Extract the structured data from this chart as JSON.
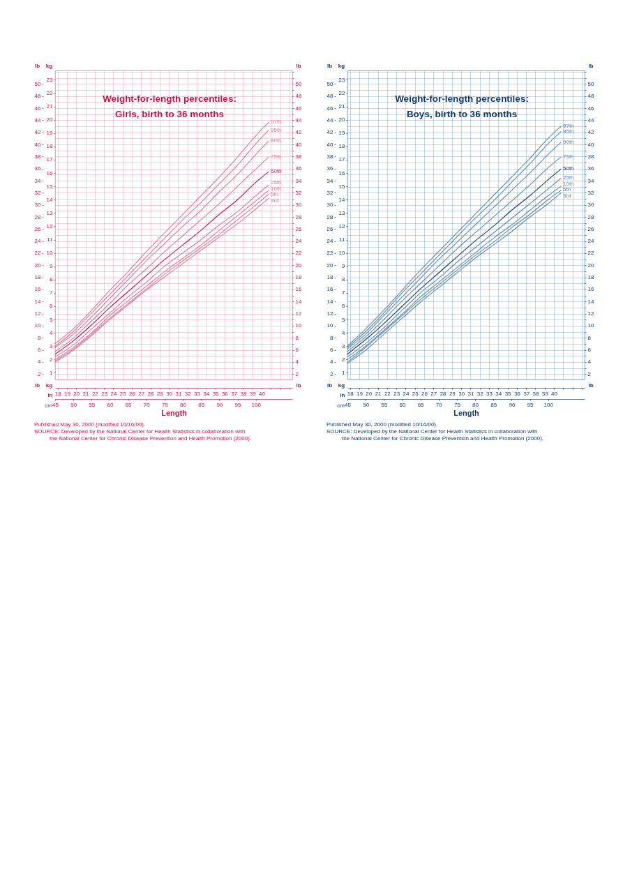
{
  "chart_data": [
    {
      "type": "line",
      "title": "Weight-for-length percentiles:",
      "subtitle": "Girls, birth to 36 months",
      "xlabel": "Length",
      "x2label": "in",
      "ylabel": "kg",
      "y2label": "lb",
      "y3label": "lb",
      "x": [
        45,
        50,
        55,
        60,
        65,
        70,
        75,
        80,
        85,
        90,
        95,
        100,
        103.5
      ],
      "xlim": [
        45,
        110
      ],
      "xticks": [
        45,
        50,
        55,
        60,
        65,
        70,
        75,
        80,
        85,
        90,
        95,
        100
      ],
      "x2lim": [
        17.72,
        43.31
      ],
      "x2ticks": [
        18,
        19,
        20,
        21,
        22,
        23,
        24,
        25,
        26,
        27,
        28,
        29,
        30,
        31,
        32,
        33,
        34,
        35,
        36,
        37,
        38,
        39,
        40,
        {
          "value": 41,
          "label": null
        },
        {
          "value": 42,
          "label": null
        },
        {
          "value": 43,
          "label": null
        }
      ],
      "ylim": [
        0.5,
        23.7
      ],
      "yticks": [
        1,
        2,
        3,
        4,
        5,
        6,
        7,
        8,
        9,
        10,
        11,
        12,
        13,
        14,
        15,
        16,
        17,
        18,
        19,
        20,
        21,
        22,
        23
      ],
      "y2lim": [
        1.1,
        52.25
      ],
      "y2ticks": [
        2,
        {
          "value": 3,
          "label": null
        },
        4,
        {
          "value": 5,
          "label": null
        },
        6,
        {
          "value": 7,
          "label": null
        },
        8,
        {
          "value": 9,
          "label": null
        },
        10,
        {
          "value": 11,
          "label": null
        },
        12,
        {
          "value": 13,
          "label": null
        },
        14,
        {
          "value": 15,
          "label": null
        },
        16,
        {
          "value": 17,
          "label": null
        },
        18,
        {
          "value": 19,
          "label": null
        },
        20,
        {
          "value": 21,
          "label": null
        },
        22,
        {
          "value": 23,
          "label": null
        },
        24,
        {
          "value": 25,
          "label": null
        },
        26,
        {
          "value": 27,
          "label": null
        },
        28,
        {
          "value": 29,
          "label": null
        },
        30,
        {
          "value": 31,
          "label": null
        },
        32,
        {
          "value": 33,
          "label": null
        },
        34,
        {
          "value": 35,
          "label": null
        },
        36,
        {
          "value": 37,
          "label": null
        },
        38,
        {
          "value": 39,
          "label": null
        },
        40,
        {
          "value": 41,
          "label": null
        },
        42,
        {
          "value": 43,
          "label": null
        },
        44,
        {
          "value": 45,
          "label": null
        },
        46,
        {
          "value": 47,
          "label": null
        },
        48,
        {
          "value": 49,
          "label": null
        },
        50,
        {
          "value": 51,
          "label": null
        },
        {
          "value": 52,
          "label": null
        }
      ],
      "y3lim": [
        1.1,
        52.25
      ],
      "y3ticks": [
        2,
        4,
        6,
        8,
        10,
        12,
        14,
        16,
        18,
        20,
        22,
        24,
        26,
        28,
        30,
        32,
        34,
        36,
        38,
        40,
        42,
        44,
        46,
        48,
        50
      ],
      "grid": true,
      "series": [
        {
          "name": "97th",
          "color": "#d77a9c",
          "values": [
            3.2,
            4.3,
            5.7,
            7.2,
            8.6,
            10.1,
            11.5,
            12.9,
            14.3,
            15.7,
            17.2,
            18.8,
            19.8
          ]
        },
        {
          "name": "95th",
          "color": "#d77a9c",
          "values": [
            3.0,
            4.1,
            5.5,
            6.9,
            8.3,
            9.7,
            11.1,
            12.5,
            13.8,
            15.2,
            16.6,
            18.2,
            19.2
          ]
        },
        {
          "name": "90th",
          "color": "#d77a9c",
          "values": [
            2.9,
            3.9,
            5.2,
            6.6,
            8.0,
            9.4,
            10.7,
            12.0,
            13.2,
            14.6,
            15.9,
            17.4,
            18.4
          ]
        },
        {
          "name": "75th",
          "color": "#d77a9c",
          "values": [
            2.6,
            3.6,
            4.9,
            6.2,
            7.6,
            8.8,
            10.1,
            11.3,
            12.5,
            13.7,
            15.0,
            16.3,
            17.2
          ]
        },
        {
          "name": "50th",
          "color": "#b8194f",
          "values": [
            2.4,
            3.4,
            4.6,
            5.9,
            7.1,
            8.3,
            9.5,
            10.6,
            11.7,
            12.9,
            14.0,
            15.3,
            16.1
          ]
        },
        {
          "name": "25th",
          "color": "#d77a9c",
          "values": [
            2.2,
            3.1,
            4.3,
            5.5,
            6.7,
            7.8,
            9.0,
            10.0,
            11.0,
            12.1,
            13.1,
            14.3,
            15.1
          ]
        },
        {
          "name": "10th",
          "color": "#d77a9c",
          "values": [
            2.0,
            2.9,
            4.0,
            5.3,
            6.4,
            7.5,
            8.6,
            9.6,
            10.6,
            11.7,
            12.8,
            13.9,
            14.7
          ]
        },
        {
          "name": "5th",
          "color": "#d77a9c",
          "values": [
            1.9,
            2.8,
            3.9,
            5.1,
            6.2,
            7.3,
            8.4,
            9.4,
            10.4,
            11.4,
            12.5,
            13.6,
            14.4
          ]
        },
        {
          "name": "3rd",
          "color": "#d77a9c",
          "values": [
            1.8,
            2.7,
            3.8,
            5.0,
            6.1,
            7.2,
            8.2,
            9.2,
            10.2,
            11.2,
            12.2,
            13.3,
            14.1
          ]
        }
      ],
      "annotations": [
        "cm",
        "Published May 30, 2000 (modified 10/16/00).",
        "SOURCE: Developed by the National Center for Health Statistics in collaboration with",
        "the National Center for Chronic Disease Prevention and Health Promotion (2000)."
      ]
    },
    {
      "type": "line",
      "title": "Weight-for-length percentiles:",
      "subtitle": "Boys, birth to 36 months",
      "xlabel": "Length",
      "x2label": "in",
      "ylabel": "kg",
      "y2label": "lb",
      "y3label": "lb",
      "x": [
        45,
        50,
        55,
        60,
        65,
        70,
        75,
        80,
        85,
        90,
        95,
        100,
        103.5
      ],
      "xlim": [
        45,
        110
      ],
      "xticks": [
        45,
        50,
        55,
        60,
        65,
        70,
        75,
        80,
        85,
        90,
        95,
        100
      ],
      "x2lim": [
        17.72,
        43.31
      ],
      "x2ticks": [
        18,
        19,
        20,
        21,
        22,
        23,
        24,
        25,
        26,
        27,
        28,
        29,
        30,
        31,
        32,
        33,
        34,
        35,
        36,
        37,
        38,
        39,
        40,
        {
          "value": 41,
          "label": null
        },
        {
          "value": 42,
          "label": null
        },
        {
          "value": 43,
          "label": null
        }
      ],
      "ylim": [
        0.5,
        23.7
      ],
      "yticks": [
        1,
        2,
        3,
        4,
        5,
        6,
        7,
        8,
        9,
        10,
        11,
        12,
        13,
        14,
        15,
        16,
        17,
        18,
        19,
        20,
        21,
        22,
        23
      ],
      "y2lim": [
        1.1,
        52.25
      ],
      "y2ticks": [
        2,
        {
          "value": 3,
          "label": null
        },
        4,
        {
          "value": 5,
          "label": null
        },
        6,
        {
          "value": 7,
          "label": null
        },
        8,
        {
          "value": 9,
          "label": null
        },
        10,
        {
          "value": 11,
          "label": null
        },
        12,
        {
          "value": 13,
          "label": null
        },
        14,
        {
          "value": 15,
          "label": null
        },
        16,
        {
          "value": 17,
          "label": null
        },
        18,
        {
          "value": 19,
          "label": null
        },
        20,
        {
          "value": 21,
          "label": null
        },
        22,
        {
          "value": 23,
          "label": null
        },
        24,
        {
          "value": 25,
          "label": null
        },
        26,
        {
          "value": 27,
          "label": null
        },
        28,
        {
          "value": 29,
          "label": null
        },
        30,
        {
          "value": 31,
          "label": null
        },
        32,
        {
          "value": 33,
          "label": null
        },
        34,
        {
          "value": 35,
          "label": null
        },
        36,
        {
          "value": 37,
          "label": null
        },
        38,
        {
          "value": 39,
          "label": null
        },
        40,
        {
          "value": 41,
          "label": null
        },
        42,
        {
          "value": 43,
          "label": null
        },
        44,
        {
          "value": 45,
          "label": null
        },
        46,
        {
          "value": 47,
          "label": null
        },
        48,
        {
          "value": 49,
          "label": null
        },
        50,
        {
          "value": 51,
          "label": null
        },
        {
          "value": 52,
          "label": null
        }
      ],
      "y3lim": [
        1.1,
        52.25
      ],
      "y3ticks": [
        2,
        4,
        6,
        8,
        10,
        12,
        14,
        16,
        18,
        20,
        22,
        24,
        26,
        28,
        30,
        32,
        34,
        36,
        38,
        40,
        42,
        44,
        46,
        48,
        50
      ],
      "grid": true,
      "series": [
        {
          "name": "97th",
          "color": "#5f88ad",
          "values": [
            3.0,
            4.3,
            5.7,
            7.2,
            8.7,
            10.1,
            11.5,
            12.9,
            14.3,
            15.7,
            17.1,
            18.6,
            19.5
          ]
        },
        {
          "name": "95th",
          "color": "#5f88ad",
          "values": [
            2.9,
            4.1,
            5.5,
            7.0,
            8.4,
            9.8,
            11.2,
            12.6,
            13.9,
            15.3,
            16.7,
            18.2,
            19.1
          ]
        },
        {
          "name": "90th",
          "color": "#5f88ad",
          "values": [
            2.8,
            3.9,
            5.3,
            6.7,
            8.1,
            9.5,
            10.8,
            12.1,
            13.4,
            14.7,
            16.0,
            17.4,
            18.3
          ]
        },
        {
          "name": "75th",
          "color": "#5f88ad",
          "values": [
            2.6,
            3.7,
            5.0,
            6.4,
            7.7,
            9.0,
            10.3,
            11.5,
            12.7,
            13.9,
            15.1,
            16.4,
            17.2
          ]
        },
        {
          "name": "50th",
          "color": "#173a63",
          "values": [
            2.4,
            3.5,
            4.7,
            6.0,
            7.3,
            8.5,
            9.7,
            10.9,
            12.0,
            13.2,
            14.3,
            15.5,
            16.3
          ]
        },
        {
          "name": "25th",
          "color": "#5f88ad",
          "values": [
            2.2,
            3.2,
            4.4,
            5.7,
            7.0,
            8.1,
            9.3,
            10.4,
            11.5,
            12.6,
            13.7,
            14.8,
            15.6
          ]
        },
        {
          "name": "10th",
          "color": "#5f88ad",
          "values": [
            2.0,
            3.0,
            4.2,
            5.4,
            6.7,
            7.8,
            8.9,
            10.0,
            11.1,
            12.1,
            13.2,
            14.3,
            15.0
          ]
        },
        {
          "name": "5th",
          "color": "#5f88ad",
          "values": [
            1.8,
            2.9,
            4.1,
            5.3,
            6.5,
            7.6,
            8.7,
            9.8,
            10.8,
            11.9,
            12.9,
            14.0,
            14.7
          ]
        },
        {
          "name": "3rd",
          "color": "#5f88ad",
          "values": [
            1.7,
            2.7,
            3.9,
            5.1,
            6.3,
            7.4,
            8.5,
            9.6,
            10.6,
            11.6,
            12.7,
            13.7,
            14.5
          ]
        }
      ],
      "annotations": [
        "cm",
        "Published May 30, 2000 (modified 10/16/00).",
        "SOURCE: Developed by the National Center for Health Statistics in collaboration with",
        "the National Center for Chronic Disease Prevention and Health Promotion (2000)."
      ]
    }
  ]
}
